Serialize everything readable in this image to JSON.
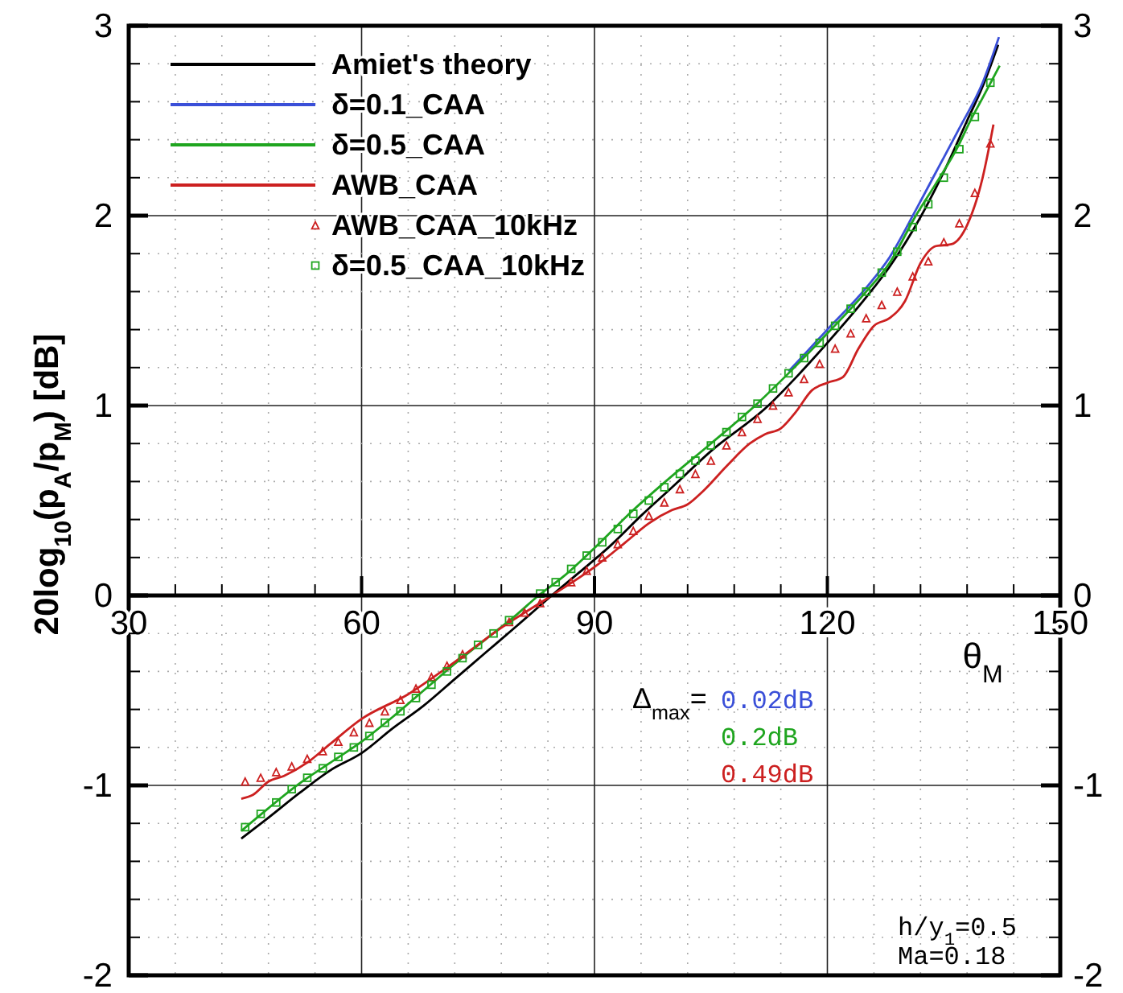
{
  "chart_data": {
    "type": "line",
    "xlabel": "θ$_{M}$",
    "ylabel": "20log$_{10}$(p$_{A}$/p$_{M}$) [dB]",
    "xlim": [
      30,
      150
    ],
    "ylim": [
      -2,
      3
    ],
    "y2lim": [
      -2,
      3
    ],
    "xticks": [
      30,
      {
        "value": 36,
        "label": null
      },
      {
        "value": 42,
        "label": null
      },
      {
        "value": 48,
        "label": null
      },
      {
        "value": 54,
        "label": null
      },
      60,
      {
        "value": 66,
        "label": null
      },
      {
        "value": 72,
        "label": null
      },
      {
        "value": 78,
        "label": null
      },
      {
        "value": 84,
        "label": null
      },
      90,
      {
        "value": 96,
        "label": null
      },
      {
        "value": 102,
        "label": null
      },
      {
        "value": 108,
        "label": null
      },
      {
        "value": 114,
        "label": null
      },
      120,
      {
        "value": 126,
        "label": null
      },
      {
        "value": 132,
        "label": null
      },
      {
        "value": 138,
        "label": null
      },
      {
        "value": 144,
        "label": null
      },
      150
    ],
    "yticks": [
      -2,
      {
        "value": -1.8,
        "label": null
      },
      {
        "value": -1.6,
        "label": null
      },
      {
        "value": -1.4,
        "label": null
      },
      {
        "value": -1.2,
        "label": null
      },
      -1,
      {
        "value": -0.8,
        "label": null
      },
      {
        "value": -0.6,
        "label": null
      },
      {
        "value": -0.4,
        "label": null
      },
      {
        "value": -0.2,
        "label": null
      },
      0,
      {
        "value": 0.2,
        "label": null
      },
      {
        "value": 0.4,
        "label": null
      },
      {
        "value": 0.6,
        "label": null
      },
      {
        "value": 0.8,
        "label": null
      },
      1,
      {
        "value": 1.2,
        "label": null
      },
      {
        "value": 1.4,
        "label": null
      },
      {
        "value": 1.6,
        "label": null
      },
      {
        "value": 1.8,
        "label": null
      },
      2,
      {
        "value": 2.2,
        "label": null
      },
      {
        "value": 2.4,
        "label": null
      },
      {
        "value": 2.6,
        "label": null
      },
      {
        "value": 2.8,
        "label": null
      },
      3
    ],
    "y2ticks": [
      -2,
      {
        "value": -1.8,
        "label": null
      },
      {
        "value": -1.6,
        "label": null
      },
      {
        "value": -1.4,
        "label": null
      },
      {
        "value": -1.2,
        "label": null
      },
      -1,
      {
        "value": -0.8,
        "label": null
      },
      {
        "value": -0.6,
        "label": null
      },
      {
        "value": -0.4,
        "label": null
      },
      {
        "value": -0.2,
        "label": null
      },
      0,
      {
        "value": 0.2,
        "label": null
      },
      {
        "value": 0.4,
        "label": null
      },
      {
        "value": 0.6,
        "label": null
      },
      {
        "value": 0.8,
        "label": null
      },
      1,
      {
        "value": 1.2,
        "label": null
      },
      {
        "value": 1.4,
        "label": null
      },
      {
        "value": 1.6,
        "label": null
      },
      {
        "value": 1.8,
        "label": null
      },
      2,
      {
        "value": 2.2,
        "label": null
      },
      {
        "value": 2.4,
        "label": null
      },
      {
        "value": 2.6,
        "label": null
      },
      {
        "value": 2.8,
        "label": null
      },
      3
    ],
    "grid": true,
    "legend": "top left",
    "line_style": "solid",
    "series": [
      {
        "name": "Amiet's theory",
        "color": "#000000",
        "x": [
          44.5,
          48,
          52,
          56,
          60,
          64,
          68,
          72,
          76,
          80,
          84.5,
          88,
          92,
          96,
          100,
          105,
          112.4,
          116,
          120,
          125,
          128,
          132.1,
          135,
          138,
          140,
          142
        ],
        "values": [
          -1.28,
          -1.17,
          -1.04,
          -0.92,
          -0.83,
          -0.7,
          -0.58,
          -0.44,
          -0.3,
          -0.16,
          0,
          0.12,
          0.26,
          0.42,
          0.57,
          0.76,
          1.0,
          1.15,
          1.33,
          1.57,
          1.73,
          2.0,
          2.23,
          2.5,
          2.68,
          2.9
        ]
      },
      {
        "name": "δ=0.1_CAA",
        "color": "#3a4fd8",
        "x": [
          115,
          120,
          125,
          128,
          131.4,
          134,
          137,
          140,
          142.1
        ],
        "values": [
          1.18,
          1.4,
          1.62,
          1.78,
          2.03,
          2.23,
          2.46,
          2.7,
          2.94
        ]
      },
      {
        "name": "δ=0.5_CAA",
        "color": "#1fa51f",
        "x": [
          44.5,
          48,
          52,
          56,
          60,
          64,
          68,
          72,
          76,
          80,
          82.8,
          86,
          90,
          95,
          100,
          105,
          110.7,
          115,
          120,
          125,
          128,
          131.4,
          134,
          136.9,
          138.3,
          140,
          142.2
        ],
        "values": [
          -1.24,
          -1.12,
          -0.99,
          -0.88,
          -0.77,
          -0.64,
          -0.5,
          -0.36,
          -0.23,
          -0.1,
          0,
          0.1,
          0.25,
          0.45,
          0.63,
          0.8,
          1.0,
          1.17,
          1.38,
          1.6,
          1.75,
          2.0,
          2.17,
          2.37,
          2.49,
          2.62,
          2.79
        ]
      },
      {
        "name": "AWB_CAA",
        "color": "#cc2020",
        "x": [
          44.5,
          46,
          48,
          50,
          53,
          56,
          60,
          66,
          71,
          78,
          84.5,
          90,
          94,
          97,
          100,
          102,
          104,
          107,
          110,
          112,
          114,
          116,
          118,
          120,
          122,
          124,
          126,
          128,
          130,
          132,
          134,
          136,
          138,
          140,
          141.4
        ],
        "values": [
          -1.07,
          -1.05,
          -0.98,
          -0.95,
          -0.88,
          -0.78,
          -0.65,
          -0.52,
          -0.38,
          -0.17,
          0,
          0.15,
          0.28,
          0.38,
          0.45,
          0.48,
          0.55,
          0.68,
          0.8,
          0.85,
          0.88,
          0.97,
          1.08,
          1.12,
          1.15,
          1.3,
          1.42,
          1.46,
          1.55,
          1.75,
          1.84,
          1.85,
          1.95,
          2.2,
          2.48
        ]
      },
      {
        "name": "AWB_CAA_10kHz",
        "type": "scatter",
        "marker": "triangle",
        "color": "#cc2020",
        "x": [
          45,
          47,
          49,
          51,
          53,
          55,
          57,
          59,
          61,
          63,
          65,
          67,
          69,
          71,
          73,
          75,
          77,
          79,
          81,
          83,
          85,
          87,
          89,
          91,
          93,
          95,
          97,
          99,
          101,
          103,
          105,
          107,
          109,
          111,
          113,
          115,
          117,
          119,
          121,
          123,
          125,
          127,
          129,
          131,
          133,
          135,
          137,
          139,
          141
        ],
        "values": [
          -0.98,
          -0.96,
          -0.93,
          -0.9,
          -0.86,
          -0.82,
          -0.77,
          -0.72,
          -0.67,
          -0.61,
          -0.55,
          -0.49,
          -0.43,
          -0.37,
          -0.31,
          null,
          null,
          -0.14,
          -0.09,
          -0.04,
          null,
          0.07,
          0.13,
          0.2,
          0.27,
          0.34,
          0.42,
          0.49,
          0.56,
          0.64,
          0.71,
          0.79,
          0.86,
          0.93,
          1.0,
          1.07,
          1.14,
          1.22,
          1.3,
          1.38,
          1.46,
          1.53,
          1.6,
          1.68,
          1.76,
          1.86,
          1.96,
          2.12,
          2.38
        ]
      },
      {
        "name": "δ=0.5_CAA_10kHz",
        "type": "scatter",
        "marker": "square",
        "color": "#1fa51f",
        "x": [
          45,
          47,
          49,
          51,
          53,
          55,
          57,
          59,
          61,
          63,
          65,
          67,
          69,
          71,
          73,
          75,
          77,
          79,
          81,
          83,
          85,
          87,
          89,
          91,
          93,
          95,
          97,
          99,
          101,
          103,
          105,
          107,
          109,
          111,
          113,
          115,
          117,
          119,
          121,
          123,
          125,
          127,
          129,
          131,
          133,
          135,
          137,
          139,
          141
        ],
        "values": [
          -1.22,
          -1.15,
          -1.09,
          -1.02,
          -0.96,
          -0.91,
          -0.85,
          -0.8,
          -0.74,
          -0.67,
          -0.61,
          -0.54,
          -0.47,
          -0.4,
          -0.33,
          -0.26,
          -0.2,
          -0.13,
          null,
          0.01,
          0.07,
          0.14,
          0.21,
          0.28,
          0.35,
          0.43,
          0.5,
          0.57,
          0.64,
          0.71,
          0.79,
          0.86,
          0.94,
          1.01,
          1.09,
          1.17,
          1.25,
          1.33,
          1.42,
          1.51,
          1.6,
          1.7,
          1.81,
          1.94,
          2.06,
          2.2,
          2.35,
          2.52,
          2.7
        ]
      }
    ],
    "annotations": [
      "Δ$_{max}$=",
      "0.02dB",
      "0.2dB",
      "0.49dB",
      "h/y$_{1}$=0.5",
      "Ma=0.18"
    ]
  }
}
